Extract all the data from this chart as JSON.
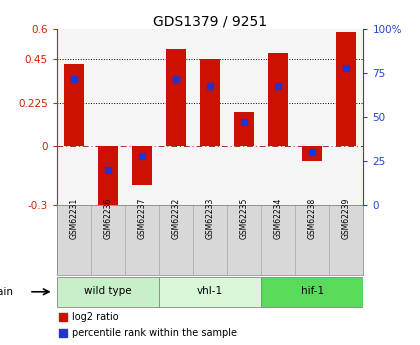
{
  "title": "GDS1379 / 9251",
  "samples": [
    "GSM62231",
    "GSM62236",
    "GSM62237",
    "GSM62232",
    "GSM62233",
    "GSM62235",
    "GSM62234",
    "GSM62238",
    "GSM62239"
  ],
  "log2_ratio": [
    0.42,
    -0.32,
    -0.2,
    0.5,
    0.45,
    0.175,
    0.48,
    -0.075,
    0.585
  ],
  "percentile_rank": [
    72,
    20,
    28,
    72,
    68,
    47,
    68,
    30,
    78
  ],
  "groups": [
    {
      "label": "wild type",
      "indices": [
        0,
        1,
        2
      ],
      "color": "#c8f0c8"
    },
    {
      "label": "vhl-1",
      "indices": [
        3,
        4,
        5
      ],
      "color": "#d8f8d8"
    },
    {
      "label": "hif-1",
      "indices": [
        6,
        7,
        8
      ],
      "color": "#5ada5a"
    }
  ],
  "ylim_left": [
    -0.3,
    0.6
  ],
  "ylim_right": [
    0,
    100
  ],
  "yticks_left": [
    -0.3,
    0,
    0.225,
    0.45,
    0.6
  ],
  "yticks_left_labels": [
    "-0.3",
    "0",
    "0.225",
    "0.45",
    "0.6"
  ],
  "yticks_right": [
    0,
    25,
    50,
    75,
    100
  ],
  "yticks_right_labels": [
    "0",
    "25",
    "50",
    "75",
    "100%"
  ],
  "hline_y": [
    0.225,
    0.45
  ],
  "bar_color": "#cc1100",
  "dot_color": "#2233cc",
  "bar_width": 0.6,
  "cell_color": "#d8d8d8",
  "plot_bg": "#ffffff",
  "ax_bg": "#f5f5f5"
}
